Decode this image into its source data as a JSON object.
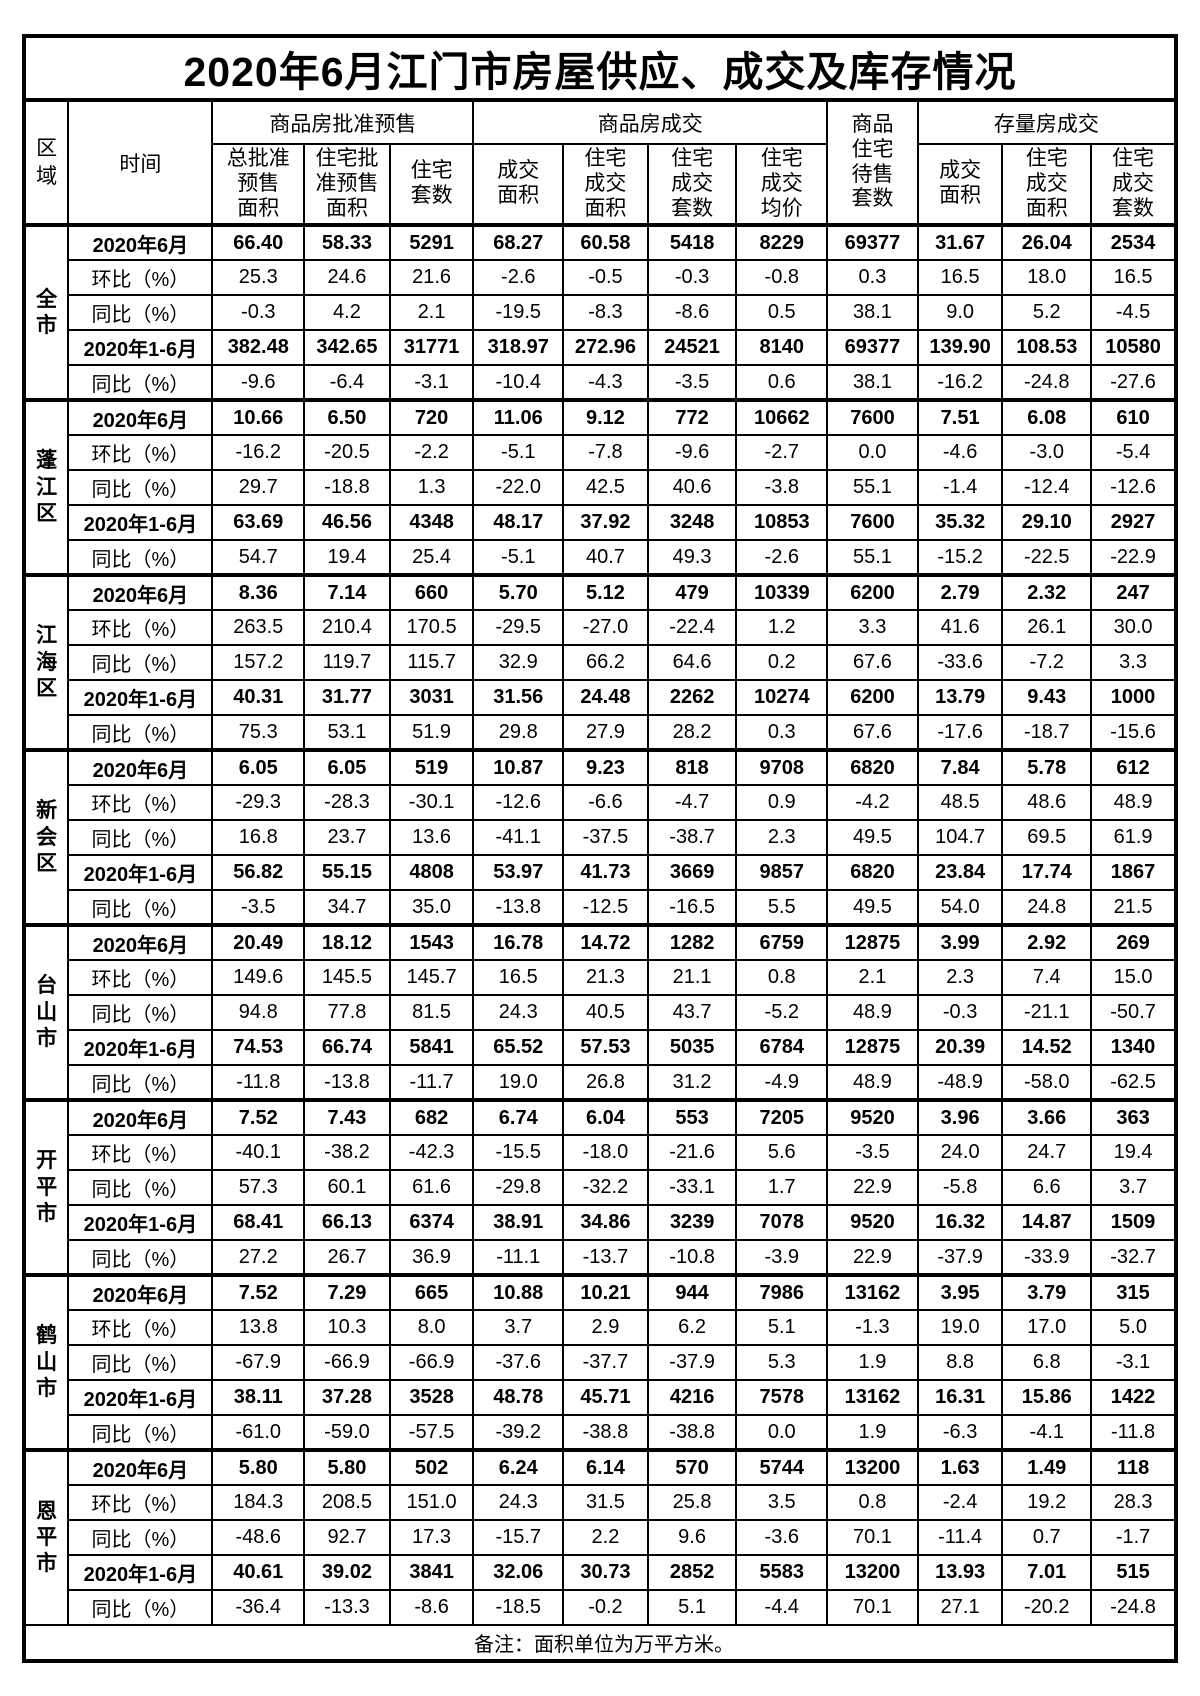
{
  "title": "2020年6月江门市房屋供应、成交及库存情况",
  "header": {
    "region": "区\n域",
    "time": "时间",
    "groups": [
      {
        "label": "商品房批准预售"
      },
      {
        "label": "商品房成交"
      },
      {
        "label": "存量房成交"
      }
    ],
    "pending_label": "商品\n住宅\n待售\n套数",
    "subheaders": [
      "总批准\n预售\n面积",
      "住宅批\n准预售\n面积",
      "住宅\n套数",
      "成交\n面积",
      "住宅\n成交\n面积",
      "住宅\n成交\n套数",
      "住宅\n成交\n均价",
      "成交\n面积",
      "住宅\n成交\n面积",
      "住宅\n成交\n套数"
    ]
  },
  "row_labels": [
    "2020年6月",
    "环比（%）",
    "同比（%）",
    "2020年1-6月",
    "同比（%）"
  ],
  "regions": [
    {
      "name": "全市",
      "rows": [
        [
          "66.40",
          "58.33",
          "5291",
          "68.27",
          "60.58",
          "5418",
          "8229",
          "69377",
          "31.67",
          "26.04",
          "2534"
        ],
        [
          "25.3",
          "24.6",
          "21.6",
          "-2.6",
          "-0.5",
          "-0.3",
          "-0.8",
          "0.3",
          "16.5",
          "18.0",
          "16.5"
        ],
        [
          "-0.3",
          "4.2",
          "2.1",
          "-19.5",
          "-8.3",
          "-8.6",
          "0.5",
          "38.1",
          "9.0",
          "5.2",
          "-4.5"
        ],
        [
          "382.48",
          "342.65",
          "31771",
          "318.97",
          "272.96",
          "24521",
          "8140",
          "69377",
          "139.90",
          "108.53",
          "10580"
        ],
        [
          "-9.6",
          "-6.4",
          "-3.1",
          "-10.4",
          "-4.3",
          "-3.5",
          "0.6",
          "38.1",
          "-16.2",
          "-24.8",
          "-27.6"
        ]
      ]
    },
    {
      "name": "蓬江区",
      "rows": [
        [
          "10.66",
          "6.50",
          "720",
          "11.06",
          "9.12",
          "772",
          "10662",
          "7600",
          "7.51",
          "6.08",
          "610"
        ],
        [
          "-16.2",
          "-20.5",
          "-2.2",
          "-5.1",
          "-7.8",
          "-9.6",
          "-2.7",
          "0.0",
          "-4.6",
          "-3.0",
          "-5.4"
        ],
        [
          "29.7",
          "-18.8",
          "1.3",
          "-22.0",
          "42.5",
          "40.6",
          "-3.8",
          "55.1",
          "-1.4",
          "-12.4",
          "-12.6"
        ],
        [
          "63.69",
          "46.56",
          "4348",
          "48.17",
          "37.92",
          "3248",
          "10853",
          "7600",
          "35.32",
          "29.10",
          "2927"
        ],
        [
          "54.7",
          "19.4",
          "25.4",
          "-5.1",
          "40.7",
          "49.3",
          "-2.6",
          "55.1",
          "-15.2",
          "-22.5",
          "-22.9"
        ]
      ]
    },
    {
      "name": "江海区",
      "rows": [
        [
          "8.36",
          "7.14",
          "660",
          "5.70",
          "5.12",
          "479",
          "10339",
          "6200",
          "2.79",
          "2.32",
          "247"
        ],
        [
          "263.5",
          "210.4",
          "170.5",
          "-29.5",
          "-27.0",
          "-22.4",
          "1.2",
          "3.3",
          "41.6",
          "26.1",
          "30.0"
        ],
        [
          "157.2",
          "119.7",
          "115.7",
          "32.9",
          "66.2",
          "64.6",
          "0.2",
          "67.6",
          "-33.6",
          "-7.2",
          "3.3"
        ],
        [
          "40.31",
          "31.77",
          "3031",
          "31.56",
          "24.48",
          "2262",
          "10274",
          "6200",
          "13.79",
          "9.43",
          "1000"
        ],
        [
          "75.3",
          "53.1",
          "51.9",
          "29.8",
          "27.9",
          "28.2",
          "0.3",
          "67.6",
          "-17.6",
          "-18.7",
          "-15.6"
        ]
      ]
    },
    {
      "name": "新会区",
      "rows": [
        [
          "6.05",
          "6.05",
          "519",
          "10.87",
          "9.23",
          "818",
          "9708",
          "6820",
          "7.84",
          "5.78",
          "612"
        ],
        [
          "-29.3",
          "-28.3",
          "-30.1",
          "-12.6",
          "-6.6",
          "-4.7",
          "0.9",
          "-4.2",
          "48.5",
          "48.6",
          "48.9"
        ],
        [
          "16.8",
          "23.7",
          "13.6",
          "-41.1",
          "-37.5",
          "-38.7",
          "2.3",
          "49.5",
          "104.7",
          "69.5",
          "61.9"
        ],
        [
          "56.82",
          "55.15",
          "4808",
          "53.97",
          "41.73",
          "3669",
          "9857",
          "6820",
          "23.84",
          "17.74",
          "1867"
        ],
        [
          "-3.5",
          "34.7",
          "35.0",
          "-13.8",
          "-12.5",
          "-16.5",
          "5.5",
          "49.5",
          "54.0",
          "24.8",
          "21.5"
        ]
      ]
    },
    {
      "name": "台山市",
      "rows": [
        [
          "20.49",
          "18.12",
          "1543",
          "16.78",
          "14.72",
          "1282",
          "6759",
          "12875",
          "3.99",
          "2.92",
          "269"
        ],
        [
          "149.6",
          "145.5",
          "145.7",
          "16.5",
          "21.3",
          "21.1",
          "0.8",
          "2.1",
          "2.3",
          "7.4",
          "15.0"
        ],
        [
          "94.8",
          "77.8",
          "81.5",
          "24.3",
          "40.5",
          "43.7",
          "-5.2",
          "48.9",
          "-0.3",
          "-21.1",
          "-50.7"
        ],
        [
          "74.53",
          "66.74",
          "5841",
          "65.52",
          "57.53",
          "5035",
          "6784",
          "12875",
          "20.39",
          "14.52",
          "1340"
        ],
        [
          "-11.8",
          "-13.8",
          "-11.7",
          "19.0",
          "26.8",
          "31.2",
          "-4.9",
          "48.9",
          "-48.9",
          "-58.0",
          "-62.5"
        ]
      ]
    },
    {
      "name": "开平市",
      "rows": [
        [
          "7.52",
          "7.43",
          "682",
          "6.74",
          "6.04",
          "553",
          "7205",
          "9520",
          "3.96",
          "3.66",
          "363"
        ],
        [
          "-40.1",
          "-38.2",
          "-42.3",
          "-15.5",
          "-18.0",
          "-21.6",
          "5.6",
          "-3.5",
          "24.0",
          "24.7",
          "19.4"
        ],
        [
          "57.3",
          "60.1",
          "61.6",
          "-29.8",
          "-32.2",
          "-33.1",
          "1.7",
          "22.9",
          "-5.8",
          "6.6",
          "3.7"
        ],
        [
          "68.41",
          "66.13",
          "6374",
          "38.91",
          "34.86",
          "3239",
          "7078",
          "9520",
          "16.32",
          "14.87",
          "1509"
        ],
        [
          "27.2",
          "26.7",
          "36.9",
          "-11.1",
          "-13.7",
          "-10.8",
          "-3.9",
          "22.9",
          "-37.9",
          "-33.9",
          "-32.7"
        ]
      ]
    },
    {
      "name": "鹤山市",
      "rows": [
        [
          "7.52",
          "7.29",
          "665",
          "10.88",
          "10.21",
          "944",
          "7986",
          "13162",
          "3.95",
          "3.79",
          "315"
        ],
        [
          "13.8",
          "10.3",
          "8.0",
          "3.7",
          "2.9",
          "6.2",
          "5.1",
          "-1.3",
          "19.0",
          "17.0",
          "5.0"
        ],
        [
          "-67.9",
          "-66.9",
          "-66.9",
          "-37.6",
          "-37.7",
          "-37.9",
          "5.3",
          "1.9",
          "8.8",
          "6.8",
          "-3.1"
        ],
        [
          "38.11",
          "37.28",
          "3528",
          "48.78",
          "45.71",
          "4216",
          "7578",
          "13162",
          "16.31",
          "15.86",
          "1422"
        ],
        [
          "-61.0",
          "-59.0",
          "-57.5",
          "-39.2",
          "-38.8",
          "-38.8",
          "0.0",
          "1.9",
          "-6.3",
          "-4.1",
          "-11.8"
        ]
      ]
    },
    {
      "name": "恩平市",
      "rows": [
        [
          "5.80",
          "5.80",
          "502",
          "6.24",
          "6.14",
          "570",
          "5744",
          "13200",
          "1.63",
          "1.49",
          "118"
        ],
        [
          "184.3",
          "208.5",
          "151.0",
          "24.3",
          "31.5",
          "25.8",
          "3.5",
          "0.8",
          "-2.4",
          "19.2",
          "28.3"
        ],
        [
          "-48.6",
          "92.7",
          "17.3",
          "-15.7",
          "2.2",
          "9.6",
          "-3.6",
          "70.1",
          "-11.4",
          "0.7",
          "-1.7"
        ],
        [
          "40.61",
          "39.02",
          "3841",
          "32.06",
          "30.73",
          "2852",
          "5583",
          "13200",
          "13.93",
          "7.01",
          "515"
        ],
        [
          "-36.4",
          "-13.3",
          "-8.6",
          "-18.5",
          "-0.2",
          "5.1",
          "-4.4",
          "70.1",
          "27.1",
          "-20.2",
          "-24.8"
        ]
      ]
    }
  ],
  "note": "备注：面积单位为万平方米。"
}
